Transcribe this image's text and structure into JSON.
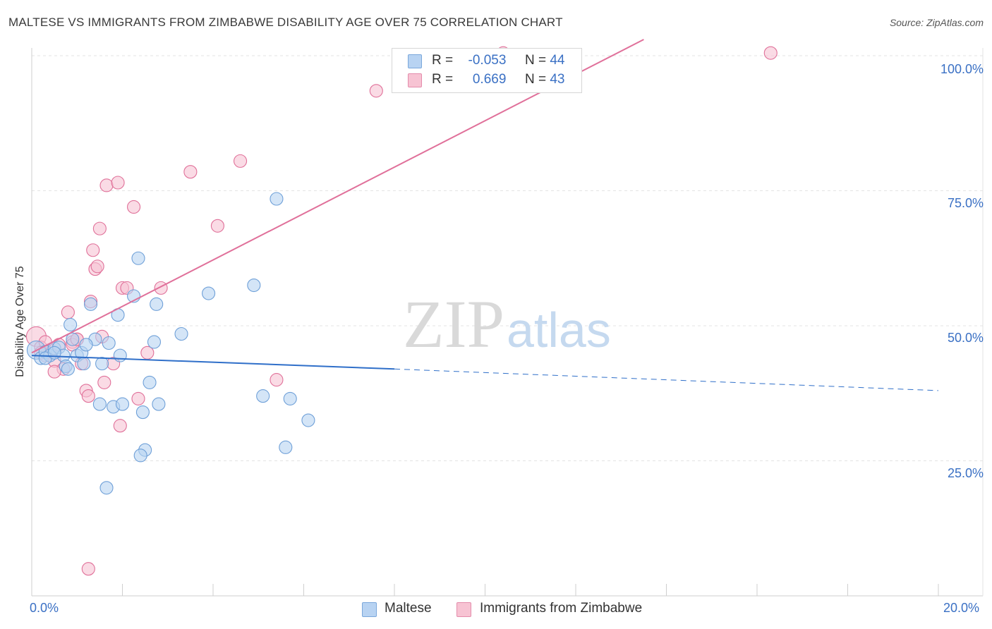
{
  "title": "MALTESE VS IMMIGRANTS FROM ZIMBABWE DISABILITY AGE OVER 75 CORRELATION CHART",
  "source": "Source: ZipAtlas.com",
  "watermark": {
    "zip": "ZIP",
    "atlas": "atlas"
  },
  "colors": {
    "blue": "#6fa0d8",
    "blue_fill": "#b8d3f2",
    "pink": "#e07099",
    "pink_fill": "#f7c3d3",
    "blue_line": "#2f6fc9",
    "pink_line": "#e0709a",
    "tick": "#3a70c4"
  },
  "legend_top": {
    "rows": [
      {
        "r_label": "R =",
        "r_value": "-0.053",
        "n_label": "N =",
        "n_value": "44"
      },
      {
        "r_label": "R =",
        "r_value": "0.669",
        "n_label": "N =",
        "n_value": "43"
      }
    ]
  },
  "legend_bottom": {
    "series1": "Maltese",
    "series2": "Immigrants from Zimbabwe"
  },
  "chart_data": {
    "type": "scatter",
    "title": "MALTESE VS IMMIGRANTS FROM ZIMBABWE DISABILITY AGE OVER 75 CORRELATION CHART",
    "xlabel": "",
    "ylabel": "Disability Age Over 75",
    "xlim": [
      0,
      20
    ],
    "ylim": [
      0,
      103
    ],
    "x_tick_labels": [
      "0.0%",
      "20.0%"
    ],
    "y_tick_labels": [
      "25.0%",
      "50.0%",
      "75.0%",
      "100.0%"
    ],
    "y_ticks": [
      25,
      50,
      75,
      100
    ],
    "grid": true,
    "series": [
      {
        "name": "Maltese",
        "R": -0.053,
        "N": 44,
        "points": [
          [
            0.1,
            45.5
          ],
          [
            0.2,
            44.0
          ],
          [
            0.3,
            45.2
          ],
          [
            0.4,
            44.5
          ],
          [
            0.5,
            45.8
          ],
          [
            0.6,
            46.0
          ],
          [
            0.7,
            44.5
          ],
          [
            0.75,
            42.5
          ],
          [
            0.8,
            42.0
          ],
          [
            0.85,
            50.2
          ],
          [
            0.9,
            47.5
          ],
          [
            1.0,
            44.5
          ],
          [
            1.1,
            45.0
          ],
          [
            1.15,
            43.0
          ],
          [
            1.3,
            54.0
          ],
          [
            1.4,
            47.5
          ],
          [
            1.5,
            35.5
          ],
          [
            1.55,
            43.0
          ],
          [
            1.7,
            46.8
          ],
          [
            1.8,
            35.0
          ],
          [
            1.9,
            52.0
          ],
          [
            1.95,
            44.5
          ],
          [
            2.0,
            35.5
          ],
          [
            2.25,
            55.5
          ],
          [
            2.35,
            62.5
          ],
          [
            2.45,
            34.0
          ],
          [
            2.5,
            27.0
          ],
          [
            2.6,
            39.5
          ],
          [
            2.7,
            47.0
          ],
          [
            2.75,
            54.0
          ],
          [
            2.8,
            35.5
          ],
          [
            3.3,
            48.5
          ],
          [
            3.9,
            56.0
          ],
          [
            4.9,
            57.5
          ],
          [
            5.1,
            37.0
          ],
          [
            5.4,
            73.5
          ],
          [
            5.6,
            27.5
          ],
          [
            5.7,
            36.5
          ],
          [
            6.1,
            32.5
          ],
          [
            2.4,
            26.0
          ],
          [
            1.65,
            20.0
          ],
          [
            0.3,
            44.0
          ],
          [
            0.5,
            45.0
          ],
          [
            1.2,
            46.5
          ]
        ],
        "sizes": {
          "0": 30
        },
        "trend": {
          "x1": 0,
          "y1": 44.5,
          "x2": 8.0,
          "y2": 42.0,
          "x3": 20,
          "y3": 38.0
        }
      },
      {
        "name": "Immigrants from Zimbabwe",
        "R": 0.669,
        "N": 43,
        "points": [
          [
            0.1,
            48.0
          ],
          [
            0.2,
            46.0
          ],
          [
            0.3,
            44.5
          ],
          [
            0.4,
            45.5
          ],
          [
            0.5,
            43.5
          ],
          [
            0.6,
            46.5
          ],
          [
            0.7,
            42.0
          ],
          [
            0.8,
            52.5
          ],
          [
            0.9,
            47.0
          ],
          [
            1.0,
            47.5
          ],
          [
            1.1,
            43.0
          ],
          [
            1.2,
            38.0
          ],
          [
            1.25,
            37.0
          ],
          [
            1.3,
            54.5
          ],
          [
            1.35,
            64.0
          ],
          [
            1.4,
            60.5
          ],
          [
            1.45,
            61.0
          ],
          [
            1.5,
            68.0
          ],
          [
            1.55,
            48.0
          ],
          [
            1.6,
            39.5
          ],
          [
            1.65,
            76.0
          ],
          [
            1.8,
            43.0
          ],
          [
            1.9,
            76.5
          ],
          [
            1.95,
            31.5
          ],
          [
            2.0,
            57.0
          ],
          [
            2.1,
            57.0
          ],
          [
            2.25,
            72.0
          ],
          [
            2.35,
            36.5
          ],
          [
            2.55,
            45.0
          ],
          [
            2.85,
            57.0
          ],
          [
            3.5,
            78.5
          ],
          [
            4.1,
            68.5
          ],
          [
            4.6,
            80.5
          ],
          [
            5.4,
            40.0
          ],
          [
            7.6,
            93.5
          ],
          [
            10.4,
            100.5
          ],
          [
            16.3,
            100.5
          ],
          [
            1.25,
            5.0
          ],
          [
            0.3,
            47.0
          ],
          [
            0.5,
            41.5
          ],
          [
            0.9,
            46.5
          ],
          [
            0.2,
            45.0
          ],
          [
            1.0,
            47.5
          ]
        ],
        "trend": {
          "x1": 0,
          "y1": 45.0,
          "x2": 13.5,
          "y2": 103.0
        }
      }
    ]
  }
}
